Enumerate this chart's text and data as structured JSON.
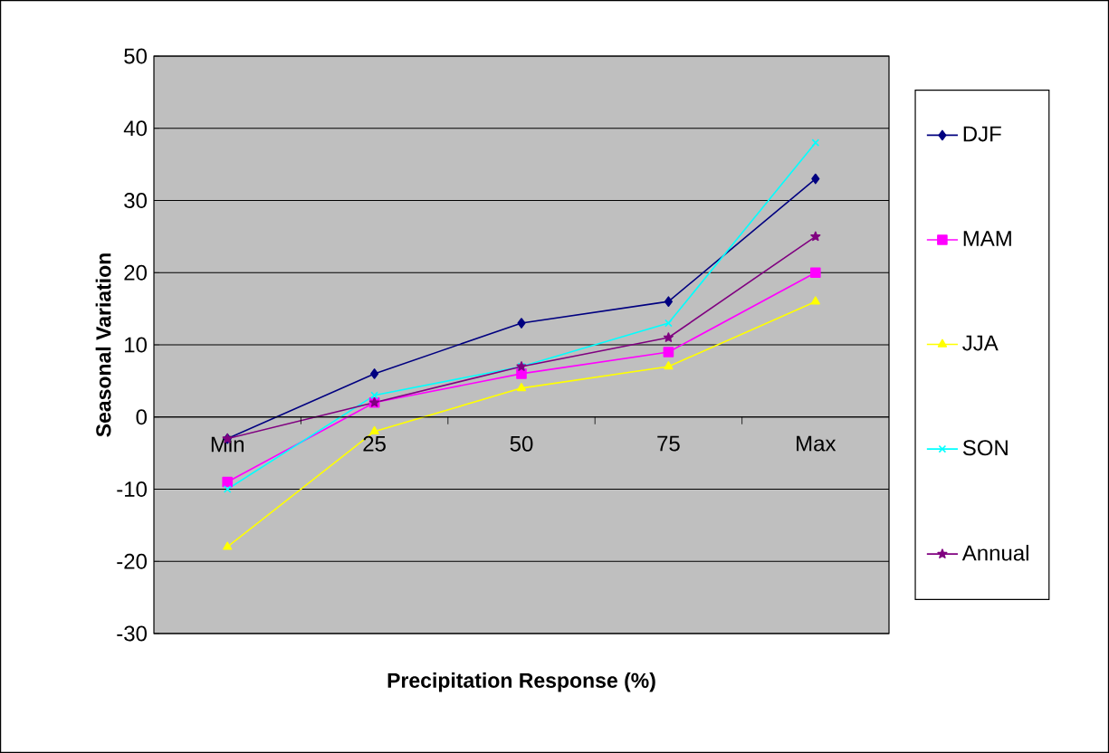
{
  "chart_data": {
    "type": "line",
    "xlabel": "Precipitation Response (%)",
    "ylabel": "Seasonal Variation",
    "categories": [
      "Min",
      "25",
      "50",
      "75",
      "Max"
    ],
    "series": [
      {
        "name": "DJF",
        "color": "#000080",
        "marker": "diamond",
        "values": [
          -3,
          6,
          13,
          16,
          33
        ]
      },
      {
        "name": "MAM",
        "color": "#ff00ff",
        "marker": "square",
        "values": [
          -9,
          2,
          6,
          9,
          20
        ]
      },
      {
        "name": "JJA",
        "color": "#ffff00",
        "marker": "triangle",
        "values": [
          -18,
          -2,
          4,
          7,
          16
        ]
      },
      {
        "name": "SON",
        "color": "#00ffff",
        "marker": "cross",
        "values": [
          -10,
          3,
          7,
          13,
          38
        ]
      },
      {
        "name": "Annual",
        "color": "#800080",
        "marker": "star",
        "values": [
          -3,
          2,
          7,
          11,
          25
        ]
      }
    ],
    "ylim": [
      -30,
      50
    ],
    "yticks": [
      -30,
      -20,
      -10,
      0,
      10,
      20,
      30,
      40,
      50
    ],
    "grid": "y",
    "legend": "right"
  }
}
